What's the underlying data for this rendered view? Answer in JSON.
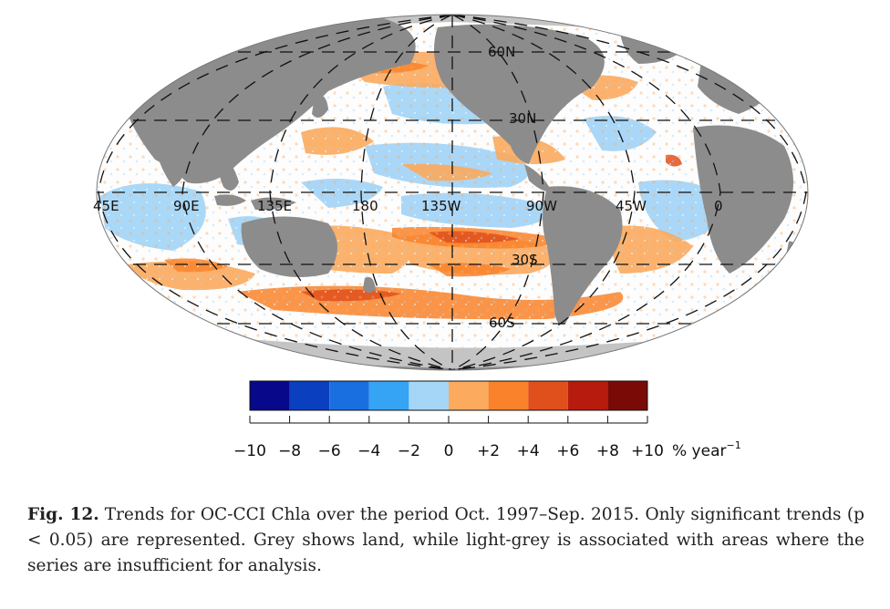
{
  "map": {
    "meridian_labels": [
      "45E",
      "90E",
      "135E",
      "180",
      "135W",
      "90W",
      "45W",
      "0"
    ],
    "parallel_labels": [
      "60N",
      "30N",
      "30S",
      "60S"
    ],
    "colors": {
      "land": "#8c8c8c",
      "insufficient": "#c4c4c4",
      "ocean": "#ffffff"
    }
  },
  "colorbar": {
    "colors": [
      "#08088a",
      "#0a3fbf",
      "#1a6fe0",
      "#35a4f5",
      "#a6d6f7",
      "#fbaa5e",
      "#f9822a",
      "#e0501c",
      "#b71b0e",
      "#7a0a06"
    ],
    "tick_labels": [
      "−10",
      "−8",
      "−6",
      "−4",
      "−2",
      "0",
      "+2",
      "+4",
      "+6",
      "+8",
      "+10"
    ],
    "unit": "% year",
    "unit_exp": "−1"
  },
  "caption": {
    "fig_label": "Fig. 12.",
    "text": "Trends for OC-CCI Chla over the period Oct. 1997–Sep. 2015. Only significant trends (p < 0.05) are represented. Grey shows land, while light-grey is associated with areas where the series are insufficient for analysis."
  }
}
